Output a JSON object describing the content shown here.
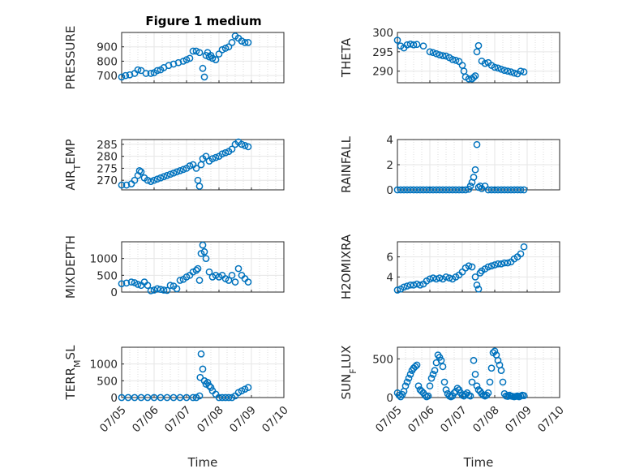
{
  "chart_data": [
    {
      "type": "scatter",
      "title": "Figure 1 medium",
      "ylabel": "PRESSURE",
      "ylim": [
        650,
        1000
      ],
      "yticks": [
        700,
        800,
        900
      ],
      "xlim": [
        0,
        5
      ],
      "xticks": [
        0,
        1,
        2,
        3,
        4,
        5
      ],
      "xticklabels": [
        "07/05",
        "07/06",
        "07/07",
        "07/08",
        "07/09",
        "07/10"
      ],
      "show_xticklabels": false,
      "x": [
        0.0,
        0.12,
        0.25,
        0.4,
        0.5,
        0.6,
        0.75,
        0.9,
        1.0,
        1.1,
        1.2,
        1.3,
        1.45,
        1.6,
        1.75,
        1.9,
        2.0,
        2.1,
        2.2,
        2.3,
        2.4,
        2.5,
        2.55,
        2.6,
        2.65,
        2.7,
        2.75,
        2.8,
        2.9,
        3.0,
        3.1,
        3.2,
        3.3,
        3.4,
        3.5,
        3.6,
        3.7,
        3.8,
        3.9
      ],
      "y": [
        690,
        700,
        705,
        715,
        740,
        735,
        715,
        715,
        720,
        735,
        740,
        755,
        770,
        780,
        790,
        800,
        810,
        820,
        870,
        870,
        860,
        750,
        690,
        840,
        860,
        830,
        840,
        820,
        810,
        850,
        880,
        890,
        900,
        930,
        975,
        960,
        940,
        930,
        930
      ]
    },
    {
      "type": "scatter",
      "ylabel": "THETA",
      "ylim": [
        287,
        300
      ],
      "yticks": [
        290,
        295,
        300
      ],
      "xlim": [
        0,
        5
      ],
      "xticks": [
        0,
        1,
        2,
        3,
        4,
        5
      ],
      "xticklabels": [
        "07/05",
        "07/06",
        "07/07",
        "07/08",
        "07/09",
        "07/10"
      ],
      "show_xticklabels": false,
      "x": [
        0.0,
        0.1,
        0.2,
        0.3,
        0.4,
        0.5,
        0.6,
        0.8,
        1.0,
        1.1,
        1.2,
        1.3,
        1.4,
        1.5,
        1.6,
        1.7,
        1.8,
        1.9,
        2.0,
        2.05,
        2.1,
        2.2,
        2.3,
        2.35,
        2.4,
        2.45,
        2.5,
        2.6,
        2.7,
        2.8,
        2.9,
        3.0,
        3.1,
        3.2,
        3.3,
        3.4,
        3.5,
        3.6,
        3.7,
        3.8,
        3.9
      ],
      "y": [
        298,
        296.5,
        296,
        296.8,
        297,
        296.8,
        296.9,
        296.5,
        295,
        294.8,
        294.5,
        294.2,
        294,
        293.9,
        293.5,
        293,
        292.8,
        292.5,
        291.5,
        290,
        288.5,
        288,
        288,
        288.4,
        288.8,
        295,
        296.6,
        292.6,
        292,
        292.2,
        291.5,
        291,
        290.8,
        290.5,
        290.2,
        290,
        289.8,
        289.5,
        289.3,
        290,
        289.8
      ]
    },
    {
      "type": "scatter",
      "ylabel": "AIR_TEMP",
      "ylim": [
        266,
        287
      ],
      "yticks": [
        270,
        275,
        280,
        285
      ],
      "xlim": [
        0,
        5
      ],
      "xticks": [
        0,
        1,
        2,
        3,
        4,
        5
      ],
      "xticklabels": [
        "07/05",
        "07/06",
        "07/07",
        "07/08",
        "07/09",
        "07/10"
      ],
      "show_xticklabels": false,
      "x": [
        0.0,
        0.15,
        0.3,
        0.4,
        0.5,
        0.55,
        0.6,
        0.7,
        0.8,
        0.9,
        1.0,
        1.1,
        1.2,
        1.3,
        1.4,
        1.5,
        1.6,
        1.7,
        1.8,
        1.9,
        2.0,
        2.1,
        2.2,
        2.3,
        2.35,
        2.4,
        2.45,
        2.5,
        2.6,
        2.7,
        2.8,
        2.9,
        3.0,
        3.1,
        3.2,
        3.3,
        3.4,
        3.5,
        3.6,
        3.7,
        3.8,
        3.9
      ],
      "y": [
        268,
        268,
        268.5,
        270,
        272,
        274,
        273.5,
        271,
        270,
        269.5,
        270,
        270.5,
        271,
        271.5,
        272,
        272.5,
        273,
        273.5,
        274,
        274.5,
        275,
        276,
        276.5,
        275,
        270,
        267.5,
        276.5,
        279,
        280,
        278,
        279,
        279.5,
        280,
        281,
        281.5,
        282,
        283,
        285,
        286,
        285,
        284.5,
        284
      ]
    },
    {
      "type": "scatter",
      "ylabel": "RAINFALL",
      "ylim": [
        0,
        4
      ],
      "yticks": [
        0,
        2,
        4
      ],
      "xlim": [
        0,
        5
      ],
      "xticks": [
        0,
        1,
        2,
        3,
        4,
        5
      ],
      "xticklabels": [
        "07/05",
        "07/06",
        "07/07",
        "07/08",
        "07/09",
        "07/10"
      ],
      "show_xticklabels": false,
      "x": [
        0.0,
        0.1,
        0.2,
        0.3,
        0.4,
        0.5,
        0.6,
        0.7,
        0.8,
        0.9,
        1.0,
        1.1,
        1.2,
        1.3,
        1.4,
        1.5,
        1.6,
        1.7,
        1.8,
        1.9,
        2.0,
        2.1,
        2.2,
        2.25,
        2.3,
        2.35,
        2.4,
        2.45,
        2.5,
        2.55,
        2.6,
        2.7,
        2.8,
        2.9,
        3.0,
        3.1,
        3.2,
        3.3,
        3.4,
        3.5,
        3.6,
        3.7,
        3.8,
        3.9
      ],
      "y": [
        0,
        0,
        0,
        0,
        0,
        0,
        0,
        0,
        0,
        0,
        0,
        0,
        0,
        0,
        0,
        0,
        0,
        0,
        0,
        0,
        0,
        0,
        0.05,
        0.3,
        0.6,
        1.0,
        1.6,
        3.6,
        0.2,
        0.3,
        0.1,
        0.3,
        0,
        0,
        0,
        0,
        0,
        0,
        0,
        0,
        0,
        0,
        0,
        0
      ]
    },
    {
      "type": "scatter",
      "ylabel": "MIXDEPTH",
      "ylim": [
        0,
        1500
      ],
      "yticks": [
        0,
        500,
        1000
      ],
      "xlim": [
        0,
        5
      ],
      "xticks": [
        0,
        1,
        2,
        3,
        4,
        5
      ],
      "xticklabels": [
        "07/05",
        "07/06",
        "07/07",
        "07/08",
        "07/09",
        "07/10"
      ],
      "show_xticklabels": false,
      "x": [
        0.0,
        0.15,
        0.3,
        0.4,
        0.5,
        0.6,
        0.7,
        0.8,
        0.9,
        1.0,
        1.1,
        1.2,
        1.3,
        1.4,
        1.5,
        1.6,
        1.7,
        1.8,
        1.9,
        2.0,
        2.1,
        2.2,
        2.3,
        2.35,
        2.4,
        2.45,
        2.5,
        2.55,
        2.6,
        2.7,
        2.8,
        2.9,
        3.0,
        3.1,
        3.2,
        3.3,
        3.4,
        3.5,
        3.6,
        3.7,
        3.8,
        3.9
      ],
      "y": [
        250,
        270,
        300,
        280,
        230,
        200,
        300,
        200,
        40,
        60,
        100,
        80,
        60,
        50,
        200,
        180,
        100,
        350,
        380,
        450,
        500,
        600,
        650,
        700,
        350,
        1150,
        1400,
        1200,
        1000,
        600,
        450,
        500,
        450,
        500,
        400,
        350,
        500,
        300,
        700,
        500,
        400,
        300
      ]
    },
    {
      "type": "scatter",
      "ylabel": "H2OMIXRA",
      "ylim": [
        2.5,
        7.5
      ],
      "yticks": [
        4,
        6
      ],
      "xlim": [
        0,
        5
      ],
      "xticks": [
        0,
        1,
        2,
        3,
        4,
        5
      ],
      "xticklabels": [
        "07/05",
        "07/06",
        "07/07",
        "07/08",
        "07/09",
        "07/10"
      ],
      "show_xticklabels": false,
      "x": [
        0.0,
        0.1,
        0.2,
        0.3,
        0.4,
        0.5,
        0.6,
        0.7,
        0.8,
        0.9,
        1.0,
        1.1,
        1.2,
        1.3,
        1.4,
        1.5,
        1.6,
        1.7,
        1.8,
        1.9,
        2.0,
        2.1,
        2.2,
        2.3,
        2.4,
        2.45,
        2.5,
        2.55,
        2.6,
        2.7,
        2.8,
        2.9,
        3.0,
        3.1,
        3.2,
        3.3,
        3.4,
        3.5,
        3.6,
        3.7,
        3.8,
        3.9
      ],
      "y": [
        2.7,
        2.8,
        3.0,
        3.1,
        3.2,
        3.2,
        3.3,
        3.2,
        3.3,
        3.6,
        3.8,
        3.9,
        3.8,
        3.9,
        3.8,
        4.0,
        3.9,
        3.8,
        4.0,
        4.2,
        4.5,
        4.9,
        5.1,
        5.0,
        4.0,
        3.2,
        2.8,
        4.4,
        4.6,
        4.8,
        5.0,
        5.1,
        5.2,
        5.3,
        5.3,
        5.4,
        5.4,
        5.5,
        5.8,
        6.0,
        6.3,
        7.0
      ]
    },
    {
      "type": "scatter",
      "ylabel": "TERR_MSL",
      "ylim": [
        0,
        1500
      ],
      "yticks": [
        0,
        500,
        1000
      ],
      "xlim": [
        0,
        5
      ],
      "xticks": [
        0,
        1,
        2,
        3,
        4,
        5
      ],
      "xticklabels": [
        "07/05",
        "07/06",
        "07/07",
        "07/08",
        "07/09",
        "07/10"
      ],
      "show_xticklabels": true,
      "xlabel": "Time",
      "x": [
        0.0,
        0.2,
        0.4,
        0.6,
        0.8,
        1.0,
        1.2,
        1.4,
        1.6,
        1.8,
        2.0,
        2.2,
        2.3,
        2.4,
        2.42,
        2.45,
        2.5,
        2.55,
        2.6,
        2.65,
        2.7,
        2.75,
        2.8,
        2.9,
        3.0,
        3.1,
        3.2,
        3.3,
        3.4,
        3.5,
        3.6,
        3.7,
        3.8,
        3.9
      ],
      "y": [
        0,
        0,
        0,
        0,
        0,
        0,
        0,
        0,
        0,
        0,
        0,
        0,
        0,
        50,
        600,
        1300,
        850,
        500,
        400,
        450,
        350,
        300,
        200,
        100,
        0,
        0,
        0,
        0,
        0,
        50,
        150,
        200,
        250,
        300
      ]
    },
    {
      "type": "scatter",
      "ylabel": "SUN_FLUX",
      "ylim": [
        0,
        650
      ],
      "yticks": [
        0,
        500
      ],
      "xlim": [
        0,
        5
      ],
      "xticks": [
        0,
        1,
        2,
        3,
        4,
        5
      ],
      "xticklabels": [
        "07/05",
        "07/06",
        "07/07",
        "07/08",
        "07/09",
        "07/10"
      ],
      "show_xticklabels": true,
      "xlabel": "Time",
      "x": [
        0.0,
        0.05,
        0.1,
        0.15,
        0.2,
        0.25,
        0.3,
        0.35,
        0.4,
        0.45,
        0.5,
        0.55,
        0.6,
        0.65,
        0.7,
        0.75,
        0.8,
        0.85,
        0.9,
        0.95,
        1.0,
        1.05,
        1.1,
        1.15,
        1.2,
        1.25,
        1.3,
        1.35,
        1.4,
        1.45,
        1.5,
        1.55,
        1.6,
        1.65,
        1.7,
        1.75,
        1.8,
        1.85,
        1.9,
        1.95,
        2.0,
        2.05,
        2.1,
        2.15,
        2.2,
        2.25,
        2.3,
        2.35,
        2.4,
        2.45,
        2.5,
        2.55,
        2.6,
        2.65,
        2.7,
        2.75,
        2.8,
        2.85,
        2.9,
        2.95,
        3.0,
        3.05,
        3.1,
        3.15,
        3.2,
        3.25,
        3.3,
        3.35,
        3.4,
        3.45,
        3.5,
        3.55,
        3.6,
        3.65,
        3.7,
        3.75,
        3.8,
        3.85,
        3.9
      ],
      "y": [
        60,
        30,
        10,
        40,
        80,
        150,
        200,
        250,
        300,
        350,
        380,
        400,
        420,
        150,
        100,
        80,
        60,
        30,
        10,
        20,
        150,
        250,
        300,
        350,
        450,
        550,
        520,
        480,
        400,
        200,
        100,
        50,
        20,
        10,
        20,
        60,
        80,
        120,
        100,
        60,
        30,
        20,
        40,
        60,
        30,
        20,
        200,
        480,
        300,
        150,
        100,
        80,
        50,
        30,
        20,
        30,
        60,
        200,
        380,
        580,
        600,
        550,
        480,
        420,
        350,
        200,
        50,
        20,
        15,
        30,
        20,
        15,
        10,
        15,
        20,
        10,
        20,
        30,
        25
      ]
    }
  ]
}
